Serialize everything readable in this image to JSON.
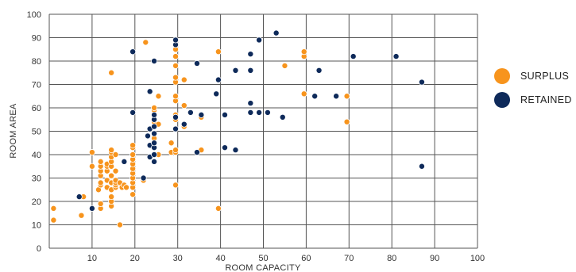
{
  "chart_data": {
    "type": "scatter",
    "title": "",
    "xlabel": "ROOM CAPACITY",
    "ylabel": "ROOM AREA",
    "xlim": [
      0,
      100
    ],
    "ylim": [
      0,
      100
    ],
    "xticks": [
      10,
      20,
      30,
      40,
      50,
      60,
      70,
      80,
      90,
      100
    ],
    "yticks": [
      0,
      10,
      20,
      30,
      40,
      50,
      60,
      70,
      80,
      90,
      100
    ],
    "grid": true,
    "legend_position": "right",
    "series": [
      {
        "name": "SURPLUS",
        "color": "#F7941D",
        "points": [
          [
            1,
            12
          ],
          [
            1,
            17
          ],
          [
            7.5,
            14
          ],
          [
            8,
            22
          ],
          [
            10,
            35
          ],
          [
            10,
            41
          ],
          [
            11.5,
            25
          ],
          [
            12,
            17
          ],
          [
            12,
            19
          ],
          [
            12,
            27
          ],
          [
            12,
            28
          ],
          [
            12,
            31
          ],
          [
            12,
            33
          ],
          [
            12,
            35
          ],
          [
            12,
            37
          ],
          [
            13.5,
            26
          ],
          [
            13.5,
            29
          ],
          [
            13.5,
            33
          ],
          [
            13.5,
            35
          ],
          [
            13.5,
            36
          ],
          [
            14.5,
            18
          ],
          [
            14.5,
            20
          ],
          [
            14.5,
            22
          ],
          [
            14.5,
            25
          ],
          [
            14.5,
            28
          ],
          [
            14.5,
            31
          ],
          [
            14.5,
            35
          ],
          [
            14.5,
            37
          ],
          [
            14.5,
            39
          ],
          [
            14.5,
            41
          ],
          [
            14.5,
            42
          ],
          [
            14.5,
            75
          ],
          [
            15.5,
            26
          ],
          [
            15.5,
            27
          ],
          [
            15.5,
            28
          ],
          [
            15.5,
            29
          ],
          [
            15.5,
            33
          ],
          [
            15.5,
            40
          ],
          [
            16.5,
            10
          ],
          [
            16.5,
            28
          ],
          [
            17,
            26
          ],
          [
            17.5,
            27
          ],
          [
            18,
            26
          ],
          [
            19.5,
            23
          ],
          [
            19.5,
            26
          ],
          [
            19.5,
            28
          ],
          [
            19.5,
            30
          ],
          [
            19.5,
            32
          ],
          [
            19.5,
            34
          ],
          [
            19.5,
            36
          ],
          [
            19.5,
            38
          ],
          [
            19.5,
            40
          ],
          [
            19.5,
            43
          ],
          [
            19.5,
            44
          ],
          [
            22,
            29
          ],
          [
            22.5,
            88
          ],
          [
            24.5,
            47
          ],
          [
            24.5,
            54
          ],
          [
            24.5,
            55
          ],
          [
            24.5,
            59
          ],
          [
            24.5,
            60
          ],
          [
            25.5,
            40
          ],
          [
            25.5,
            53
          ],
          [
            25.5,
            65
          ],
          [
            28.5,
            41
          ],
          [
            28.5,
            45
          ],
          [
            29.5,
            27
          ],
          [
            29.5,
            41
          ],
          [
            29.5,
            42
          ],
          [
            29.5,
            55
          ],
          [
            29.5,
            57
          ],
          [
            29.5,
            63
          ],
          [
            29.5,
            65
          ],
          [
            29.5,
            71
          ],
          [
            29.5,
            73
          ],
          [
            29.5,
            78
          ],
          [
            29.5,
            82
          ],
          [
            29.5,
            85
          ],
          [
            29.5,
            87
          ],
          [
            31.5,
            52
          ],
          [
            31.5,
            61
          ],
          [
            31.5,
            72
          ],
          [
            35.5,
            42
          ],
          [
            35.5,
            56
          ],
          [
            39.5,
            17
          ],
          [
            39.5,
            84
          ],
          [
            55,
            78
          ],
          [
            59.5,
            66
          ],
          [
            59.5,
            82
          ],
          [
            59.5,
            84
          ],
          [
            69.5,
            54
          ],
          [
            69.5,
            65
          ]
        ]
      },
      {
        "name": "RETAINED",
        "color": "#0E2A5A",
        "points": [
          [
            7,
            22
          ],
          [
            10,
            17
          ],
          [
            17.5,
            37
          ],
          [
            19.5,
            58
          ],
          [
            19.5,
            84
          ],
          [
            22,
            30
          ],
          [
            23,
            48
          ],
          [
            23.5,
            39
          ],
          [
            23.5,
            44
          ],
          [
            23.5,
            51
          ],
          [
            23.5,
            67
          ],
          [
            24.5,
            37
          ],
          [
            24.5,
            40
          ],
          [
            24.5,
            43
          ],
          [
            24.5,
            45
          ],
          [
            24.5,
            49
          ],
          [
            24.5,
            52
          ],
          [
            24.5,
            55
          ],
          [
            24.5,
            57
          ],
          [
            24.5,
            80
          ],
          [
            29.5,
            51
          ],
          [
            29.5,
            56
          ],
          [
            29.5,
            87
          ],
          [
            29.5,
            89
          ],
          [
            31.5,
            53
          ],
          [
            33,
            58
          ],
          [
            34.5,
            41
          ],
          [
            34.5,
            79
          ],
          [
            35.5,
            57
          ],
          [
            39,
            66
          ],
          [
            39.5,
            72
          ],
          [
            41,
            43
          ],
          [
            41,
            57
          ],
          [
            43.5,
            42
          ],
          [
            43.5,
            76
          ],
          [
            47,
            58
          ],
          [
            47,
            62
          ],
          [
            47,
            76
          ],
          [
            47,
            83
          ],
          [
            49,
            58
          ],
          [
            49,
            89
          ],
          [
            51,
            58
          ],
          [
            53,
            92
          ],
          [
            54.5,
            56
          ],
          [
            62,
            65
          ],
          [
            63,
            76
          ],
          [
            67,
            65
          ],
          [
            71,
            82
          ],
          [
            81,
            82
          ],
          [
            87,
            35
          ],
          [
            87,
            71
          ]
        ]
      }
    ]
  }
}
